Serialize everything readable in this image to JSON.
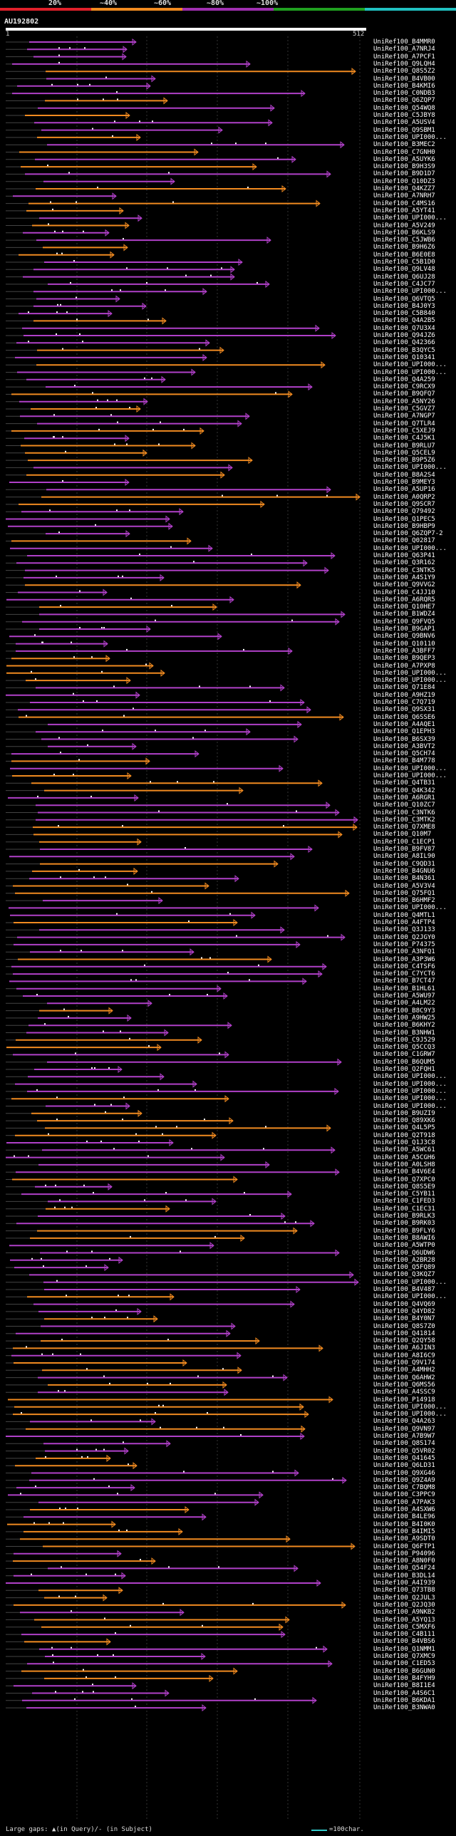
{
  "legend": {
    "items": [
      {
        "label": "20%",
        "color": "#e0202a"
      },
      {
        "label": "~40%",
        "color": "#f08a20"
      },
      {
        "label": "~60%",
        "color": "#a030b0"
      },
      {
        "label": "~80%",
        "color": "#20a020"
      },
      {
        "label": "~100%",
        "color": "#20c0c0"
      }
    ]
  },
  "query": {
    "name": "AU192802",
    "start": "1",
    "end": "512"
  },
  "footer": {
    "gaps_text": "Large gaps: ▲(in Query)/- (in Subject)",
    "scale_text": "=100char."
  },
  "hits": [
    "UniRef100_B4MMR0",
    "UniRef100_A7NRJ4",
    "UniRef100_A7PCF1",
    "UniRef100_Q9LQH4",
    "UniRef100_Q8S5Z2",
    "UniRef100_B4VB00",
    "UniRef100_B4KMI6",
    "UniRef100_C0NDB3",
    "UniRef100_Q6ZQP7",
    "UniRef100_Q54WQ8",
    "UniRef100_C5JBY8",
    "UniRef100_A5USV4",
    "UniRef100_Q9SBM1",
    "UniRef100_UPI000...",
    "UniRef100_B3MEC2",
    "UniRef100_C7GNH0",
    "UniRef100_A5UYK6",
    "UniRef100_B9H3S9",
    "UniRef100_B9D1D7",
    "UniRef100_Q10DZ3",
    "UniRef100_Q4KZZ7",
    "UniRef100_A7NRH7",
    "UniRef100_C4MS16",
    "UniRef100_A5YT41",
    "UniRef100_UPI000...",
    "UniRef100_A5V249",
    "UniRef100_B6KLS9",
    "UniRef100_C5JWB6",
    "UniRef100_B9H6Z6",
    "UniRef100_B6E0E8",
    "UniRef100_C5B1D0",
    "UniRef100_Q9LV48",
    "UniRef100_Q6UJ28",
    "UniRef100_C4JC77",
    "UniRef100_UPI000...",
    "UniRef100_Q6VTQ5",
    "UniRef100_B4J0Y3",
    "UniRef100_C5B840",
    "UniRef100_Q4A2B5",
    "UniRef100_Q7U3X4",
    "UniRef100_Q94JZ6",
    "UniRef100_Q42366",
    "UniRef100_B3QYC5",
    "UniRef100_Q10341",
    "UniRef100_UPI000...",
    "UniRef100_UPI000...",
    "UniRef100_Q4A259",
    "UniRef100_C9RCX9",
    "UniRef100_B9QFQ7",
    "UniRef100_A5NY26",
    "UniRef100_C5GVZ7",
    "UniRef100_A7NGP7",
    "UniRef100_Q7TLR4",
    "UniRef100_C5XEJ9",
    "UniRef100_C4J5K1",
    "UniRef100_B9RLU7",
    "UniRef100_Q5CEL9",
    "UniRef100_B9P5Z6",
    "UniRef100_UPI000...",
    "UniRef100_B8A2S4",
    "UniRef100_B9MEY3",
    "UniRef100_A5UP16",
    "UniRef100_A0QRP2",
    "UniRef100_Q9SCR7",
    "UniRef100_Q79492",
    "UniRef100_Q1PEC5",
    "UniRef100_B9HBP9",
    "UniRef100_Q6ZQP7-2",
    "UniRef100_Q02817",
    "UniRef100_UPI000...",
    "UniRef100_Q63P41",
    "UniRef100_Q3R162",
    "UniRef100_C3NTK5",
    "UniRef100_A4S1Y9",
    "UniRef100_Q9VVG2",
    "UniRef100_C4JJ10",
    "UniRef100_A6RQR5",
    "UniRef100_Q10HE7",
    "UniRef100_B1WDZ4",
    "UniRef100_Q9FVQ5",
    "UniRef100_B9GAP1",
    "UniRef100_Q9BNV6",
    "UniRef100_Q10110",
    "UniRef100_A3BFF7",
    "UniRef100_B9QEP3",
    "UniRef100_A7PXP8",
    "UniRef100_UPI000...",
    "UniRef100_UPI000...",
    "UniRef100_Q71E84",
    "UniRef100_A9HZ19",
    "UniRef100_C7Q719",
    "UniRef100_Q9SX31",
    "UniRef100_Q6SSE6",
    "UniRef100_A4AQE1",
    "UniRef100_Q1EPH3",
    "UniRef100_B6SX39",
    "UniRef100_A3BVT2",
    "UniRef100_Q5CH74",
    "UniRef100_B4M778",
    "UniRef100_UPI000...",
    "UniRef100_UPI000...",
    "UniRef100_Q4TB31",
    "UniRef100_Q4K342",
    "UniRef100_A6RGR1",
    "UniRef100_Q10ZC7",
    "UniRef100_C3NTK6",
    "UniRef100_C3MTK2",
    "UniRef100_Q7XME8",
    "UniRef100_Q10M7",
    "UniRef100_C1ECP1",
    "UniRef100_B9FV87",
    "UniRef100_A8IL90",
    "UniRef100_C9QD31",
    "UniRef100_B4GNU6",
    "UniRef100_B4N361",
    "UniRef100_A5V3V4",
    "UniRef100_Q75FQ1",
    "UniRef100_B6HMF2",
    "UniRef100_UPI000...",
    "UniRef100_Q4MTL1",
    "UniRef100_A4FTP4",
    "UniRef100_Q3J133",
    "UniRef100_Q2JGY0",
    "UniRef100_P74375",
    "UniRef100_A3NFQ1",
    "UniRef100_A3P3W6",
    "UniRef100_C4TSF6",
    "UniRef100_C7YCT6",
    "UniRef100_B7CT47",
    "UniRef100_B1HL61",
    "UniRef100_A5WU97",
    "UniRef100_A4LM22",
    "UniRef100_B8C9Y3",
    "UniRef100_A9HW25",
    "UniRef100_B6KHY2",
    "UniRef100_B3NHW1",
    "UniRef100_C9J529",
    "UniRef100_Q5CCQ3",
    "UniRef100_C1GRW7",
    "UniRef100_B6QUM5",
    "UniRef100_Q2FQH1",
    "UniRef100_UPI000...",
    "UniRef100_UPI000...",
    "UniRef100_UPI000...",
    "UniRef100_UPI000...",
    "UniRef100_UPI000...",
    "UniRef100_B9UZI9",
    "UniRef100_Q89XK6",
    "UniRef100_Q4L5P5",
    "UniRef100_Q2T918",
    "UniRef100_Q1J3C8",
    "UniRef100_A5WC61",
    "UniRef100_A5CGH6",
    "UniRef100_A0LSH8",
    "UniRef100_B4V6E4",
    "UniRef100_Q7XPC0",
    "UniRef100_Q8S5E9",
    "UniRef100_C5YB11",
    "UniRef100_C1FED3",
    "UniRef100_C1EC31",
    "UniRef100_B9RLK3",
    "UniRef100_B9RK03",
    "UniRef100_B9FLY6",
    "UniRef100_B8AWI6",
    "UniRef100_A5WTP0",
    "UniRef100_Q6UDW6",
    "UniRef100_A2BR28",
    "UniRef100_Q5FQ89",
    "UniRef100_Q3KQZ7",
    "UniRef100_UPI000...",
    "UniRef100_B4V487",
    "UniRef100_UPI000...",
    "UniRef100_Q4VQ69",
    "UniRef100_Q4YD82",
    "UniRef100_B4Y0N7",
    "UniRef100_Q8S7Z0",
    "UniRef100_Q41814",
    "UniRef100_Q2QY58",
    "UniRef100_A6JIN3",
    "UniRef100_A8I6C9",
    "UniRef100_Q9V174",
    "UniRef100_A4MHH2",
    "UniRef100_Q6AHW2",
    "UniRef100_Q6MS56",
    "UniRef100_A4SSC9",
    "UniRef100_P14918",
    "UniRef100_UPI000...",
    "UniRef100_UPI000...",
    "UniRef100_Q4A263",
    "UniRef100_Q9VN97",
    "UniRef100_A7B9W7",
    "UniRef100_Q8S174",
    "UniRef100_Q5VR02",
    "UniRef100_Q41645",
    "UniRef100_Q6LD31",
    "UniRef100_Q9XG46",
    "UniRef100_Q9Z4A9",
    "UniRef100_C7BQM8",
    "UniRef100_C3PPC9",
    "UniRef100_A7PAK3",
    "UniRef100_A4SXW6",
    "UniRef100_B4LE96",
    "UniRef100_B4I0K0",
    "UniRef100_B4IMI5",
    "UniRef100_A9SDT0",
    "UniRef100_Q6FTP1",
    "UniRef100_P94096",
    "UniRef100_A8N0F0",
    "UniRef100_Q54F24",
    "UniRef100_B3DL14",
    "UniRef100_A4I939",
    "UniRef100_Q73TB8",
    "UniRef100_Q2JUL3",
    "UniRef100_Q2JQ30",
    "UniRef100_A9NKB2",
    "UniRef100_A5YQ13",
    "UniRef100_C5MXF6",
    "UniRef100_C4B111",
    "UniRef100_B4VBS6",
    "UniRef100_Q1NMM1",
    "UniRef100_Q7XMC9",
    "UniRef100_C1ED53",
    "UniRef100_B6GUN0",
    "UniRef100_B4FYH9",
    "UniRef100_B8I1E4",
    "UniRef100_A4S6C1",
    "UniRef100_B6KDA1",
    "UniRef100_B3NWA0"
  ]
}
